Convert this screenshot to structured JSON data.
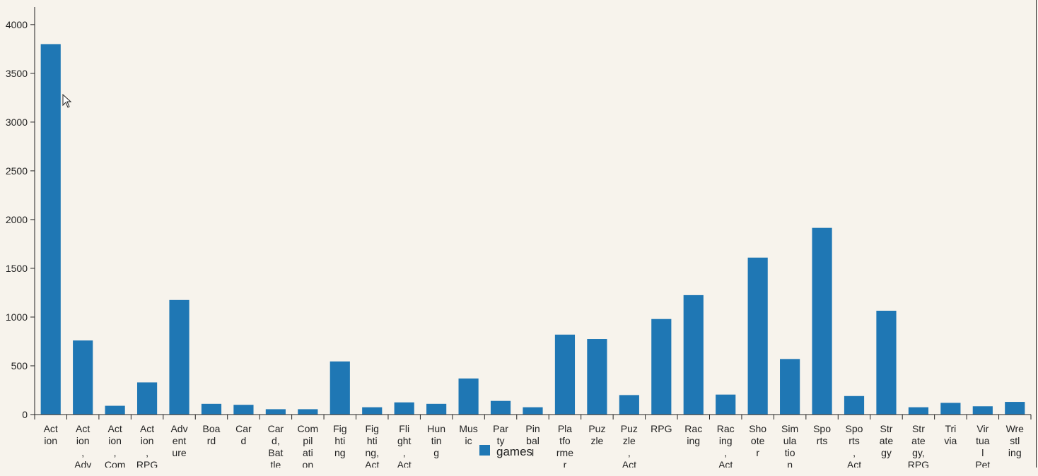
{
  "chart_data": {
    "type": "bar",
    "categories": [
      "Action",
      "Action, Adventure",
      "Action, Compilation",
      "Action, RPG",
      "Adventure",
      "Board",
      "Card",
      "Card, Battle",
      "Compilation",
      "Fighting",
      "Fighting, Action",
      "Flight, Action",
      "Hunting",
      "Music",
      "Party",
      "Pinball",
      "Platformer",
      "Puzzle",
      "Puzzle, Action",
      "RPG",
      "Racing",
      "Racing, Action",
      "Shooter",
      "Simulation",
      "Sports",
      "Sports, Action",
      "Strategy",
      "Strategy, RPG",
      "Trivia",
      "Virtual Pet",
      "Wrestling"
    ],
    "x_tick_lines": [
      [
        "Act",
        "ion"
      ],
      [
        "Act",
        "ion",
        ",",
        "Adv"
      ],
      [
        "Act",
        "ion",
        ",",
        "Com"
      ],
      [
        "Act",
        "ion",
        ",",
        "RPG"
      ],
      [
        "Adv",
        "ent",
        "ure"
      ],
      [
        "Boa",
        "rd"
      ],
      [
        "Car",
        "d"
      ],
      [
        "Car",
        "d,",
        "Bat",
        "tle"
      ],
      [
        "Com",
        "pil",
        "ati",
        "on"
      ],
      [
        "Fig",
        "hti",
        "ng"
      ],
      [
        "Fig",
        "hti",
        "ng,",
        "Act"
      ],
      [
        "Fli",
        "ght",
        ",",
        "Act"
      ],
      [
        "Hun",
        "tin",
        "g"
      ],
      [
        "Mus",
        "ic"
      ],
      [
        "Par",
        "ty"
      ],
      [
        "Pin",
        "bal",
        "l"
      ],
      [
        "Pla",
        "tfo",
        "rme",
        "r"
      ],
      [
        "Puz",
        "zle"
      ],
      [
        "Puz",
        "zle",
        ",",
        "Act"
      ],
      [
        "RPG"
      ],
      [
        "Rac",
        "ing"
      ],
      [
        "Rac",
        "ing",
        ",",
        "Act"
      ],
      [
        "Sho",
        "ote",
        "r"
      ],
      [
        "Sim",
        "ula",
        "tio",
        "n"
      ],
      [
        "Spo",
        "rts"
      ],
      [
        "Spo",
        "rts",
        ",",
        "Act"
      ],
      [
        "Str",
        "ate",
        "gy"
      ],
      [
        "Str",
        "ate",
        "gy,",
        "RPG"
      ],
      [
        "Tri",
        "via"
      ],
      [
        "Vir",
        "tua",
        "l",
        "Pet"
      ],
      [
        "Wre",
        "stl",
        "ing"
      ]
    ],
    "series": [
      {
        "name": "games",
        "color": "#1f77b4",
        "values": [
          3800,
          760,
          90,
          330,
          1175,
          110,
          100,
          55,
          55,
          545,
          75,
          125,
          110,
          370,
          140,
          75,
          820,
          775,
          200,
          980,
          1225,
          205,
          1610,
          570,
          1915,
          190,
          1065,
          75,
          120,
          85,
          130
        ]
      }
    ],
    "yticks": [
      0,
      500,
      1000,
      1500,
      2000,
      2500,
      3000,
      3500,
      4000
    ],
    "ylim": [
      0,
      4180
    ],
    "legend_position": "bottom-center",
    "grid": false
  }
}
